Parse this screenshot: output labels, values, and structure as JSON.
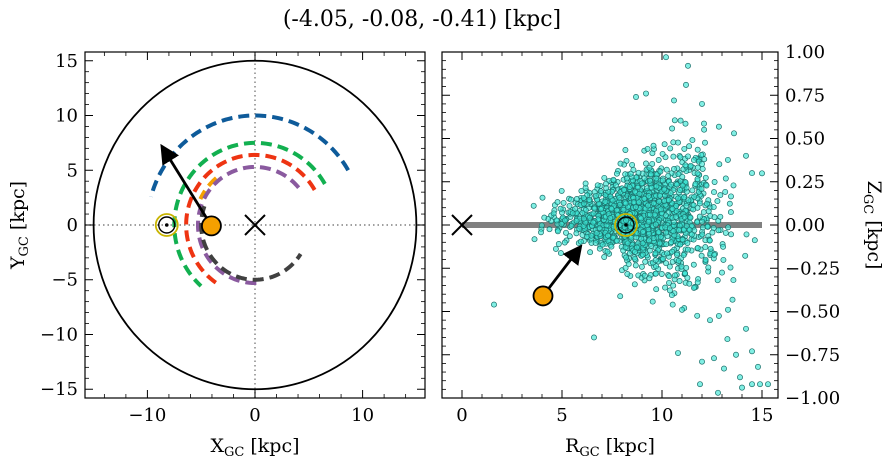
{
  "figure": {
    "title": "(-4.05, -0.08, -0.41) [kpc]"
  },
  "chart_data": [
    {
      "type": "line",
      "panel": "left",
      "xlabel": "X_GC [kpc]",
      "ylabel": "Y_GC [kpc]",
      "xlim": [
        -15.8,
        15.8
      ],
      "ylim": [
        -15.8,
        15.8
      ],
      "xticks": [
        -10,
        0,
        10
      ],
      "yticks": [
        -15,
        -10,
        -5,
        0,
        5,
        10,
        15
      ],
      "tick_labels_x": [
        "−10",
        "0",
        "10"
      ],
      "tick_labels_y": [
        "−15",
        "−10",
        "−5",
        "0",
        "5",
        "10",
        "15"
      ],
      "grid": false,
      "reference_lines": {
        "x": 0,
        "y": 0,
        "style": "dotted",
        "color": "#808080"
      },
      "boundary_circle": {
        "center": [
          0,
          0
        ],
        "radius": 15,
        "color": "#000000"
      },
      "series": [
        {
          "color": "#0e5b9a",
          "radius": 10.0,
          "theta_start_deg": 30,
          "theta_end_deg": 165,
          "style": "dashed"
        },
        {
          "color": "#12b050",
          "radius": 7.5,
          "theta_start_deg": 30,
          "theta_end_deg": 228,
          "style": "dashed"
        },
        {
          "color": "#f5a000",
          "radius": 5.6,
          "theta_start_deg": 130,
          "theta_end_deg": 155,
          "style": "dashed"
        },
        {
          "color": "#ee3412",
          "radius": 6.4,
          "theta_start_deg": 30,
          "theta_end_deg": 240,
          "style": "dashed"
        },
        {
          "color": "#8a5a9f",
          "radius": 5.3,
          "theta_start_deg": 40,
          "theta_end_deg": 276,
          "style": "dashed"
        },
        {
          "color": "#404040",
          "radius": 5.0,
          "theta_start_deg": 160,
          "theta_end_deg": 328,
          "style": "dashed"
        }
      ],
      "markers": {
        "sun": {
          "x": -8.2,
          "y": 0.0
        },
        "galactic_center": {
          "x": 0.0,
          "y": 0.0
        },
        "source": {
          "x": -4.05,
          "y": -0.08,
          "color": "#f5a000"
        }
      },
      "arrow": {
        "from": [
          -4.05,
          -0.08
        ],
        "to": [
          -8.6,
          7.1
        ]
      }
    },
    {
      "type": "scatter",
      "panel": "right",
      "xlabel": "R_GC [kpc]",
      "ylabel": "Z_GC [kpc]",
      "xlim": [
        -1.0,
        15.8
      ],
      "ylim": [
        -1.0,
        1.0
      ],
      "xticks": [
        0,
        5,
        10,
        15
      ],
      "yticks": [
        -1.0,
        -0.75,
        -0.5,
        -0.25,
        0.0,
        0.25,
        0.5,
        0.75,
        1.0
      ],
      "tick_labels_x": [
        "0",
        "5",
        "10",
        "15"
      ],
      "tick_labels_y": [
        "−1.00",
        "−0.75",
        "−0.50",
        "−0.25",
        "0.00",
        "0.25",
        "0.50",
        "0.75",
        "1.00"
      ],
      "yaxis_side": "right",
      "grid": false,
      "disk_line": {
        "x": [
          0,
          15
        ],
        "y": 0,
        "color": "#808080"
      },
      "cloud": {
        "point_color": "#3de6d6",
        "edge_color": "#1b6f6a",
        "center_R": 9.0,
        "n_points": 1600
      },
      "outliers": [
        [
          10.2,
          0.97
        ],
        [
          11.3,
          0.92
        ],
        [
          9.2,
          0.76
        ],
        [
          10.6,
          0.72
        ],
        [
          12.0,
          0.7
        ],
        [
          11.2,
          0.81
        ],
        [
          8.7,
          0.74
        ],
        [
          13.6,
          0.53
        ],
        [
          14.2,
          0.4
        ],
        [
          14.5,
          0.3
        ],
        [
          1.6,
          -0.46
        ],
        [
          6.6,
          -0.65
        ],
        [
          3.9,
          -0.43
        ],
        [
          12.4,
          -0.55
        ],
        [
          13.3,
          -0.49
        ],
        [
          14.2,
          -0.6
        ],
        [
          13.7,
          -0.75
        ],
        [
          14.5,
          -0.73
        ],
        [
          14.8,
          -0.82
        ],
        [
          14.5,
          -0.92
        ],
        [
          14.0,
          -0.94
        ],
        [
          14.9,
          -0.92
        ],
        [
          15.3,
          -0.92
        ],
        [
          12.0,
          -0.79
        ],
        [
          12.6,
          -0.77
        ],
        [
          13.1,
          -0.83
        ],
        [
          11.9,
          -0.92
        ],
        [
          12.8,
          -0.97
        ],
        [
          13.9,
          -0.88
        ],
        [
          10.8,
          -0.74
        ]
      ],
      "markers": {
        "sun": {
          "x": 8.2,
          "y": 0.0
        },
        "galactic_center": {
          "x": 0.0,
          "y": 0.0
        },
        "source": {
          "x": 4.05,
          "y": -0.41,
          "color": "#f5a000"
        }
      },
      "arrow": {
        "from": [
          4.05,
          -0.41
        ],
        "to": [
          5.9,
          -0.13
        ]
      }
    }
  ]
}
